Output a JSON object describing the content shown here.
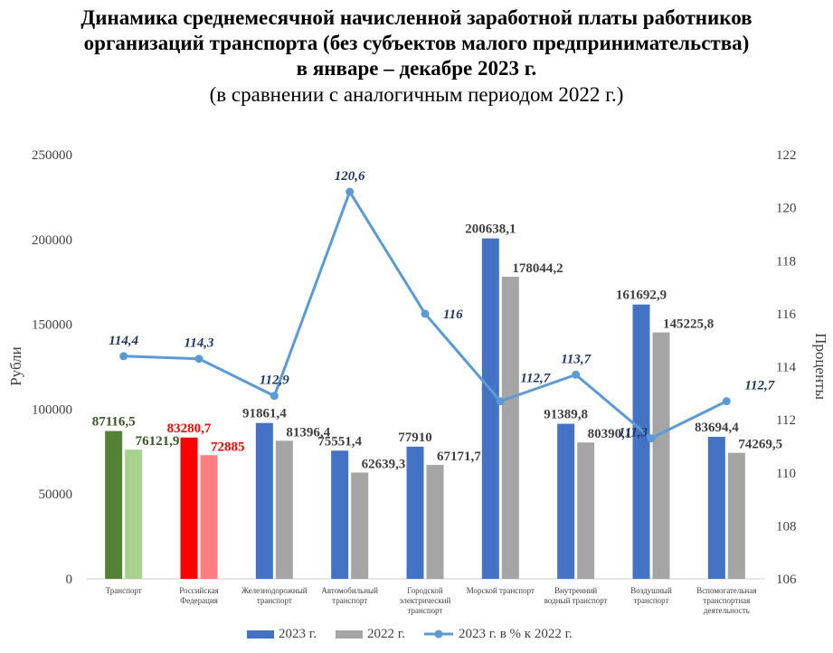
{
  "title_lines": [
    "Динамика среднемесячной начисленной заработной платы работников",
    "организаций транспорта (без субъектов малого предпринимательства)",
    "в январе – декабре 2023 г."
  ],
  "subtitle": "(в сравнении с аналогичным периодом 2022 г.)",
  "chart_data": {
    "type": "bar",
    "combo": "bar+line",
    "categories": [
      [
        "Транспорт"
      ],
      [
        "Российская",
        "Федерация"
      ],
      [
        "Железнодорожный",
        "транспорт"
      ],
      [
        "Автомобильный",
        "транспорт"
      ],
      [
        "Городской",
        "электрический",
        "транспорт"
      ],
      [
        "Морской транспорт"
      ],
      [
        "Внутренний",
        "водный транспорт"
      ],
      [
        "Воздушный",
        "транспорт"
      ],
      [
        "Вспомогательная",
        "транспортная",
        "деятельность"
      ]
    ],
    "series": [
      {
        "name": "2023 г.",
        "axis": "left",
        "kind": "bar",
        "color": "#4472C4",
        "values": [
          87116.5,
          83280.7,
          91861.4,
          75551.4,
          77910,
          200638.1,
          91389.8,
          161692.9,
          83694.4
        ],
        "labels": [
          "87116,5",
          "83280,7",
          "91861,4",
          "75551,4",
          "77910",
          "200638,1",
          "91389,8",
          "161692,9",
          "83694,4"
        ]
      },
      {
        "name": "2022 г.",
        "axis": "left",
        "kind": "bar",
        "color": "#A5A5A5",
        "values": [
          76121.9,
          72885,
          81396.4,
          62639.3,
          67171.7,
          178044.2,
          80390.1,
          145225.8,
          74269.5
        ],
        "labels": [
          "76121,9",
          "72885",
          "81396,4",
          "62639,3",
          "67171,7",
          "178044,2",
          "80390,1",
          "145225,8",
          "74269,5"
        ]
      },
      {
        "name": "2023 г. в % к 2022 г.",
        "axis": "right",
        "kind": "line",
        "color": "#5B9BD5",
        "values": [
          114.4,
          114.3,
          112.9,
          120.6,
          116,
          112.7,
          113.7,
          111.3,
          112.7
        ],
        "labels": [
          "114,4",
          "114,3",
          "112,9",
          "120,6",
          "116",
          "112,7",
          "113,7",
          "111,3",
          "112,7"
        ]
      }
    ],
    "highlight_colors": {
      "transport_2023": "#548235",
      "transport_2022": "#A9D18E",
      "russia_2023": "#FF0000",
      "russia_2022": "#FF7C80"
    },
    "ylabel": "Рубли",
    "y2label": "Проценты",
    "ylim": [
      0,
      250000
    ],
    "y2lim": [
      106,
      122
    ],
    "yticks": [
      "0",
      "50000",
      "100000",
      "150000",
      "200000",
      "250000"
    ],
    "y2ticks": [
      "106",
      "108",
      "110",
      "112",
      "114",
      "116",
      "118",
      "120",
      "122"
    ],
    "legend_position": "bottom"
  }
}
